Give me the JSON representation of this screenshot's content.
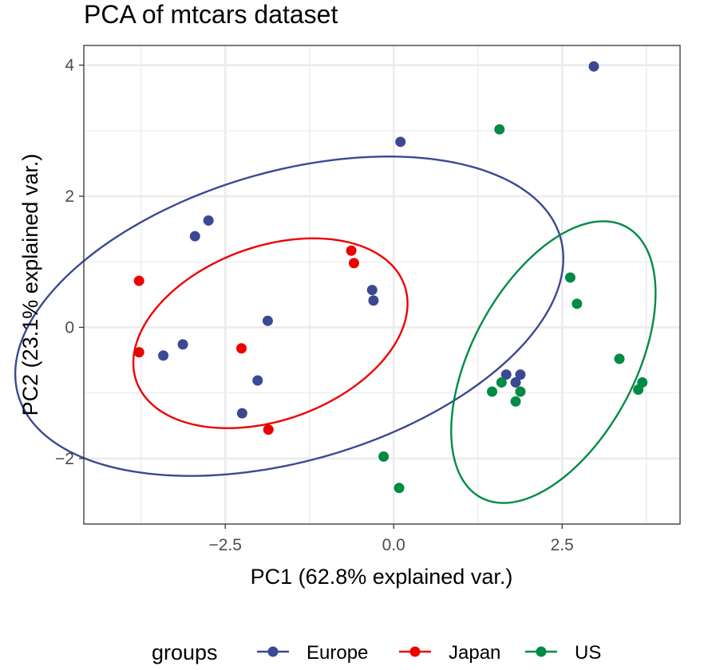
{
  "chart_data": {
    "type": "scatter",
    "title": "PCA of mtcars dataset",
    "xlabel": "PC1 (62.8% explained var.)",
    "ylabel": "PC2 (23.1% explained var.)",
    "xlim": [
      -4.6,
      4.25
    ],
    "ylim": [
      -3.0,
      4.3
    ],
    "xticks": [
      -2.5,
      0.0,
      2.5
    ],
    "xtick_labels": [
      "−2.5",
      "0.0",
      "2.5"
    ],
    "yticks": [
      -2,
      0,
      2,
      4
    ],
    "ytick_labels": [
      "−2",
      "0",
      "2",
      "4"
    ],
    "grid": true,
    "legend": {
      "title": "groups",
      "position": "bottom"
    },
    "series": [
      {
        "name": "Europe",
        "color": "#3B4992",
        "ellipse": {
          "cx": -1.55,
          "cy": 0.17,
          "rx": 4.2,
          "ry": 2.2,
          "angle_deg": 17
        },
        "points": [
          [
            2.97,
            3.98
          ],
          [
            0.1,
            2.83
          ],
          [
            -2.75,
            1.63
          ],
          [
            -2.95,
            1.39
          ],
          [
            -0.32,
            0.57
          ],
          [
            -0.3,
            0.41
          ],
          [
            -1.87,
            0.1
          ],
          [
            -3.13,
            -0.26
          ],
          [
            -3.42,
            -0.43
          ],
          [
            -2.02,
            -0.81
          ],
          [
            -2.25,
            -1.31
          ],
          [
            1.67,
            -0.72
          ],
          [
            1.81,
            -0.84
          ],
          [
            1.88,
            -0.72
          ]
        ]
      },
      {
        "name": "Japan",
        "color": "#EE0000",
        "ellipse": {
          "cx": -1.83,
          "cy": -0.09,
          "rx": 2.12,
          "ry": 1.32,
          "angle_deg": 21
        },
        "points": [
          [
            -3.78,
            0.71
          ],
          [
            -3.78,
            -0.38
          ],
          [
            -2.26,
            -0.32
          ],
          [
            -0.63,
            1.17
          ],
          [
            -0.59,
            0.98
          ],
          [
            -1.86,
            -1.56
          ]
        ]
      },
      {
        "name": "US",
        "color": "#008B45",
        "ellipse": {
          "cx": 2.37,
          "cy": -0.53,
          "rx": 2.33,
          "ry": 1.22,
          "angle_deg": 63
        },
        "points": [
          [
            1.57,
            3.02
          ],
          [
            2.62,
            0.76
          ],
          [
            2.72,
            0.36
          ],
          [
            3.35,
            -0.48
          ],
          [
            3.69,
            -0.84
          ],
          [
            3.63,
            -0.95
          ],
          [
            1.46,
            -0.98
          ],
          [
            1.6,
            -0.84
          ],
          [
            1.81,
            -1.13
          ],
          [
            1.88,
            -0.98
          ],
          [
            -0.15,
            -1.97
          ],
          [
            0.08,
            -2.45
          ]
        ]
      }
    ]
  }
}
